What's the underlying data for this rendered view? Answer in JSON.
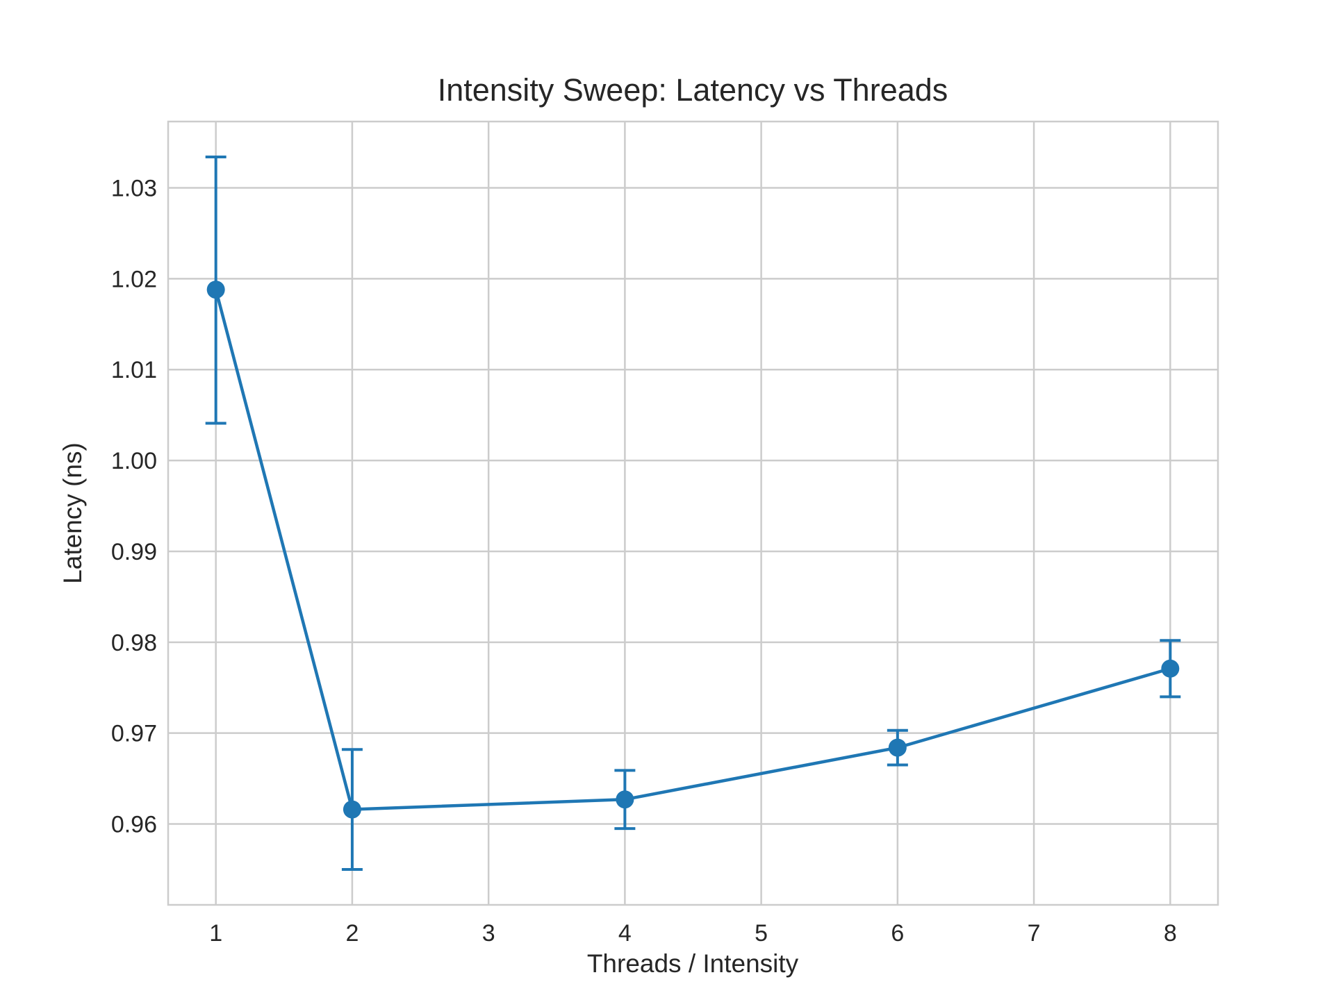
{
  "chart_data": {
    "type": "line",
    "title": "Intensity Sweep: Latency vs Threads",
    "xlabel": "Threads / Intensity",
    "ylabel": "Latency (ns)",
    "x_ticks": [
      "1",
      "2",
      "3",
      "4",
      "5",
      "6",
      "7",
      "8"
    ],
    "y_ticks": [
      "0.96",
      "0.97",
      "0.98",
      "0.99",
      "1.00",
      "1.01",
      "1.02",
      "1.03"
    ],
    "xlim": [
      0.65,
      8.35
    ],
    "ylim": [
      0.9511,
      1.0373
    ],
    "grid": true,
    "series": [
      {
        "color": "#1f77b4",
        "x": [
          1,
          2,
          4,
          6,
          8
        ],
        "y": [
          1.0188,
          0.9616,
          0.9627,
          0.9684,
          0.9771
        ],
        "error_lower": [
          1.0041,
          0.955,
          0.9595,
          0.9665,
          0.974
        ],
        "error_upper": [
          1.0334,
          0.9682,
          0.9659,
          0.9703,
          0.9802
        ]
      }
    ]
  }
}
